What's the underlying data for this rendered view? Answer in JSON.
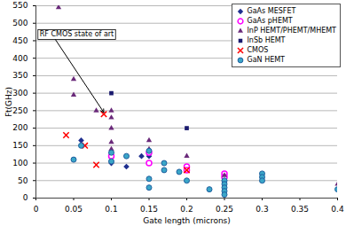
{
  "chart_data": {
    "type": "scatter",
    "x_label": "Gate length (microns)",
    "y_label": "Ft(GHz)",
    "xlim": [
      0,
      0.4
    ],
    "xticks": [
      0,
      0.05,
      0.1,
      0.15,
      0.2,
      0.25,
      0.3,
      0.35,
      0.4
    ],
    "ylim": [
      0,
      550
    ],
    "yticks": [
      0,
      50,
      100,
      150,
      200,
      250,
      300,
      350,
      400,
      450,
      500,
      550
    ],
    "grid": "y",
    "legend": "top-right",
    "annotations": [
      {
        "text": "RF CMOS state of art",
        "x": 0.09,
        "y": 245,
        "text_x": 0.005,
        "text_y": 468
      }
    ],
    "series": [
      {
        "name": "GaAs MESFET",
        "color": "#1f2f8f",
        "marker": "diamond",
        "x": [
          0.06,
          0.1,
          0.12,
          0.14,
          0.15,
          0.25,
          0.25
        ],
        "values": [
          165,
          100,
          90,
          120,
          120,
          50,
          45
        ]
      },
      {
        "name": "GaAs pHEMT",
        "color": "#ff00ff",
        "marker": "circle-open",
        "x": [
          0.1,
          0.15,
          0.15,
          0.2,
          0.2,
          0.25,
          0.25
        ],
        "values": [
          120,
          130,
          100,
          90,
          80,
          70,
          60
        ]
      },
      {
        "name": "InP HEMT/PHEMT/MHEMT",
        "color": "#6a2a7a",
        "marker": "triangle",
        "x": [
          0.03,
          0.05,
          0.05,
          0.08,
          0.1,
          0.1,
          0.1,
          0.1,
          0.1,
          0.15,
          0.15,
          0.2,
          0.25,
          0.4
        ],
        "values": [
          545,
          340,
          295,
          250,
          250,
          230,
          200,
          160,
          140,
          165,
          140,
          120,
          65,
          40
        ]
      },
      {
        "name": "InSb HEMT",
        "color": "#1a1a6e",
        "marker": "square",
        "x": [
          0.1,
          0.2
        ],
        "values": [
          300,
          200
        ]
      },
      {
        "name": "CMOS",
        "color": "#ff0000",
        "marker": "x",
        "x": [
          0.04,
          0.065,
          0.08,
          0.09,
          0.2
        ],
        "values": [
          180,
          150,
          95,
          240,
          80
        ]
      },
      {
        "name": "GaN HEMT",
        "color": "#3aa6c8",
        "marker": "circle",
        "x": [
          0.05,
          0.06,
          0.1,
          0.1,
          0.12,
          0.15,
          0.15,
          0.15,
          0.17,
          0.17,
          0.19,
          0.2,
          0.23,
          0.25,
          0.25,
          0.25,
          0.25,
          0.25,
          0.3,
          0.3,
          0.3,
          0.4
        ],
        "values": [
          110,
          150,
          130,
          105,
          120,
          135,
          55,
          30,
          100,
          80,
          75,
          50,
          25,
          50,
          40,
          30,
          20,
          10,
          70,
          60,
          50,
          25
        ]
      }
    ]
  }
}
